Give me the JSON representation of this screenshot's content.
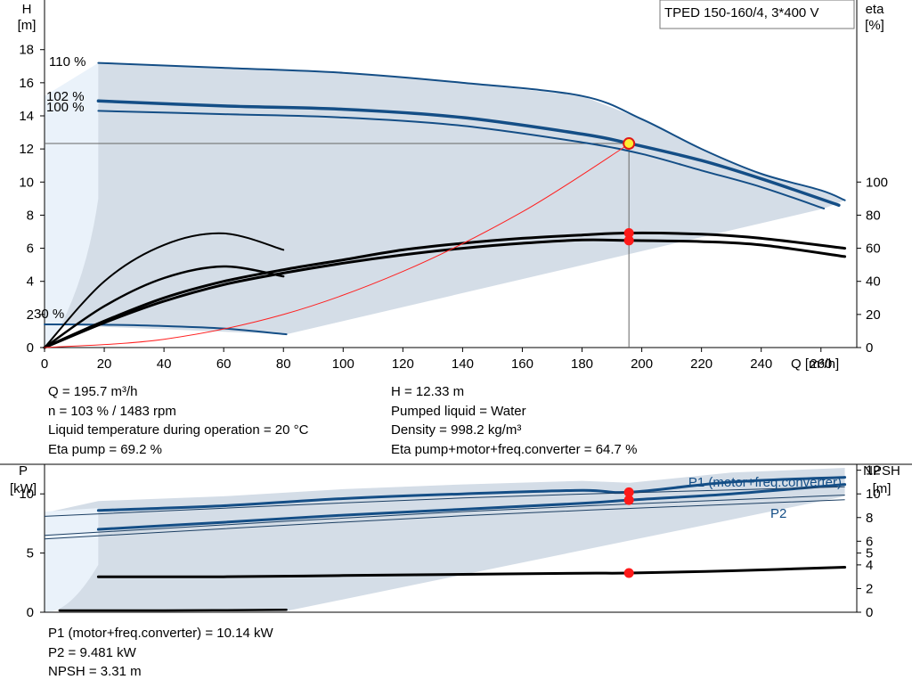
{
  "chart_data": [
    {
      "type": "line",
      "title": "TPED 150-160/4, 3*400 V",
      "x_axis": {
        "label": "Q [m³/h]",
        "range": [
          0,
          272
        ],
        "ticks": [
          0,
          20,
          40,
          60,
          80,
          100,
          120,
          140,
          160,
          180,
          200,
          220,
          240,
          260
        ]
      },
      "y_left": {
        "label_top": "H",
        "label_unit": "[m]",
        "range": [
          0,
          21
        ],
        "ticks": [
          0,
          2,
          4,
          6,
          8,
          10,
          12,
          14,
          16,
          18
        ]
      },
      "y_right": {
        "label_top": "eta",
        "label_unit": "[%]",
        "range": [
          0,
          210
        ],
        "ticks": [
          0,
          20,
          40,
          60,
          80,
          100
        ]
      },
      "speed_labels": [
        "110 %",
        "102 %",
        "100 %",
        "30 %"
      ],
      "grid": false,
      "series": [
        {
          "color": "#144e86",
          "axis": "left",
          "x": [
            18,
            60,
            100,
            140,
            180,
            200,
            220,
            240,
            260,
            268
          ],
          "y": [
            17.2,
            16.9,
            16.6,
            16.0,
            15.2,
            13.8,
            12.0,
            10.5,
            9.5,
            8.9
          ]
        },
        {
          "color": "#144e86",
          "axis": "left",
          "x": [
            18,
            60,
            100,
            140,
            180,
            196,
            220,
            240,
            266
          ],
          "y": [
            14.9,
            14.6,
            14.4,
            13.9,
            12.9,
            12.33,
            11.3,
            10.2,
            8.6
          ]
        },
        {
          "color": "#144e86",
          "axis": "left",
          "x": [
            18,
            60,
            100,
            140,
            180,
            200,
            220,
            240,
            261
          ],
          "y": [
            14.3,
            14.1,
            13.9,
            13.4,
            12.4,
            11.7,
            10.7,
            9.7,
            8.4
          ]
        },
        {
          "color": "#144e86",
          "axis": "left",
          "x": [
            0,
            20,
            40,
            60,
            81
          ],
          "y": [
            1.4,
            1.38,
            1.3,
            1.15,
            0.8
          ]
        },
        {
          "color": "#000000",
          "axis": "right",
          "x": [
            0,
            20,
            40,
            60,
            80,
            100,
            120,
            140,
            160,
            180,
            196,
            220,
            240,
            268
          ],
          "y": [
            0,
            16,
            30,
            40,
            47,
            53,
            59,
            63,
            66,
            68,
            69.2,
            68.5,
            66,
            60
          ]
        },
        {
          "color": "#000000",
          "axis": "right",
          "x": [
            0,
            20,
            40,
            60,
            80,
            100,
            120,
            140,
            160,
            180,
            196,
            220,
            240,
            268
          ],
          "y": [
            0,
            15,
            28,
            38,
            45,
            51,
            56,
            60,
            63,
            65,
            64.7,
            64,
            62,
            55
          ]
        },
        {
          "color": "#000000",
          "axis": "right",
          "x": [
            0,
            20,
            40,
            60,
            80
          ],
          "y": [
            0,
            40,
            62,
            69,
            59
          ]
        },
        {
          "color": "#000000",
          "axis": "right",
          "x": [
            0,
            20,
            40,
            60,
            80
          ],
          "y": [
            0,
            25,
            42,
            49,
            43
          ]
        },
        {
          "color": "#ff2020",
          "axis": "left",
          "x": [
            0,
            40,
            80,
            120,
            160,
            196
          ],
          "y": [
            0,
            0.5,
            2.0,
            4.6,
            8.2,
            12.33
          ]
        }
      ],
      "operating_point": {
        "Q": 195.7,
        "H": 12.33
      }
    },
    {
      "type": "line",
      "title": "",
      "x_axis": {
        "range": [
          0,
          272
        ]
      },
      "y_left": {
        "label_top": "P",
        "label_unit": "[kW]",
        "range": [
          0,
          12.5
        ],
        "ticks": [
          0,
          5,
          10
        ]
      },
      "y_right": {
        "label_top": "NPSH",
        "label_unit": "[m]",
        "range": [
          0,
          12.5
        ],
        "ticks": [
          0,
          2,
          4,
          5,
          6,
          8,
          10,
          12
        ]
      },
      "legend": [
        "P1 (motor+freq.converter)",
        "P2"
      ],
      "series": [
        {
          "name": "P1 (motor+freq.converter)",
          "color": "#144e86",
          "x": [
            18,
            60,
            100,
            140,
            180,
            196,
            230,
            268
          ],
          "y": [
            8.6,
            9.0,
            9.6,
            10.0,
            10.3,
            10.14,
            11.0,
            11.4
          ]
        },
        {
          "name": "P2",
          "color": "#144e86",
          "x": [
            18,
            60,
            100,
            140,
            180,
            196,
            230,
            268
          ],
          "y": [
            7.0,
            7.6,
            8.2,
            8.7,
            9.2,
            9.481,
            10.0,
            10.8
          ]
        },
        {
          "color": "#000000",
          "x": [
            18,
            60,
            100,
            140,
            180,
            196,
            230,
            268
          ],
          "y": [
            3.0,
            3.0,
            3.1,
            3.2,
            3.3,
            3.31,
            3.5,
            3.8
          ]
        },
        {
          "color": "#000000",
          "x": [
            5,
            40,
            81
          ],
          "y": [
            0.15,
            0.15,
            0.2
          ]
        }
      ]
    }
  ],
  "info_top": {
    "left": [
      "Q = 195.7 m³/h",
      "n = 103 % / 1483 rpm",
      "Liquid temperature during operation = 20 °C",
      "Eta pump = 69.2 %"
    ],
    "right": [
      "H = 12.33 m",
      "Pumped liquid = Water",
      "Density = 998.2 kg/m³",
      "Eta pump+motor+freq.converter = 64.7 %"
    ]
  },
  "info_bottom": [
    "P1 (motor+freq.converter) = 10.14 kW",
    "P2 = 9.481 kW",
    "NPSH = 3.31 m"
  ],
  "colors": {
    "area": "#d4dde7",
    "area_light": "#eaf2fa",
    "curve_blue": "#144e86",
    "red": "#ff2020"
  }
}
